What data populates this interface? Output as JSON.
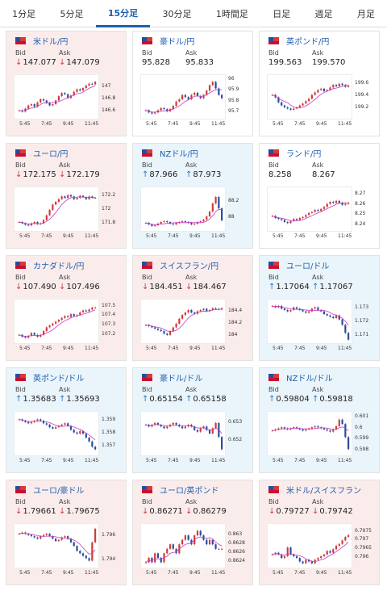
{
  "tabs": [
    {
      "label": "1分足",
      "active": false
    },
    {
      "label": "5分足",
      "active": false
    },
    {
      "label": "15分足",
      "active": true
    },
    {
      "label": "30分足",
      "active": false
    },
    {
      "label": "1時間足",
      "active": false
    },
    {
      "label": "日足",
      "active": false
    },
    {
      "label": "週足",
      "active": false
    },
    {
      "label": "月足",
      "active": false
    }
  ],
  "labels": {
    "bid": "Bid",
    "ask": "Ask"
  },
  "x_ticks": [
    "5:45",
    "7:45",
    "9:45",
    "11:45"
  ],
  "colors": {
    "up_candle": "#d23a3a",
    "down_candle": "#2b4c9a",
    "ma_line": "#c23cc2",
    "link": "#1f5fae"
  },
  "pairs": [
    {
      "name": "米ドル/円",
      "trend": "down",
      "bid": "147.077",
      "ask": "147.079",
      "y_ticks": [
        "147",
        "146.8",
        "146.6"
      ],
      "ylim": [
        146.5,
        147.15
      ],
      "series": [
        146.62,
        146.6,
        146.65,
        146.7,
        146.72,
        146.68,
        146.75,
        146.8,
        146.78,
        146.74,
        146.7,
        146.72,
        146.78,
        146.85,
        146.9,
        146.88,
        146.82,
        146.86,
        146.92,
        146.96,
        146.94,
        146.98,
        147.02,
        147.05,
        147.04,
        147.08
      ]
    },
    {
      "name": "豪ドル/円",
      "trend": "flat",
      "bid": "95.828",
      "ask": "95.833",
      "y_ticks": [
        "96",
        "95.9",
        "95.8",
        "95.7"
      ],
      "ylim": [
        95.65,
        96.02
      ],
      "series": [
        95.72,
        95.7,
        95.69,
        95.7,
        95.72,
        95.74,
        95.73,
        95.71,
        95.73,
        95.76,
        95.8,
        95.82,
        95.86,
        95.84,
        95.82,
        95.86,
        95.88,
        95.85,
        95.83,
        95.86,
        95.9,
        95.95,
        95.98,
        95.92,
        95.86,
        95.83
      ]
    },
    {
      "name": "英ポンド/円",
      "trend": "flat",
      "bid": "199.563",
      "ask": "199.570",
      "y_ticks": [
        "199.6",
        "199.4",
        "199.2"
      ],
      "ylim": [
        199.05,
        199.7
      ],
      "series": [
        199.42,
        199.38,
        199.3,
        199.25,
        199.22,
        199.2,
        199.18,
        199.2,
        199.22,
        199.25,
        199.28,
        199.32,
        199.36,
        199.42,
        199.46,
        199.5,
        199.52,
        199.48,
        199.5,
        199.54,
        199.58,
        199.56,
        199.6,
        199.58,
        199.55,
        199.57
      ]
    },
    {
      "name": "ユーロ/円",
      "trend": "down",
      "bid": "172.175",
      "ask": "172.179",
      "y_ticks": [
        "172.2",
        "172",
        "171.8"
      ],
      "ylim": [
        171.7,
        172.3
      ],
      "series": [
        171.82,
        171.8,
        171.78,
        171.77,
        171.8,
        171.82,
        171.79,
        171.8,
        171.85,
        171.92,
        172.0,
        172.08,
        172.12,
        172.16,
        172.2,
        172.18,
        172.22,
        172.2,
        172.16,
        172.18,
        172.21,
        172.19,
        172.16,
        172.2,
        172.18,
        172.18
      ]
    },
    {
      "name": "NZドル/円",
      "trend": "up",
      "bid": "87.966",
      "ask": "87.973",
      "y_ticks": [
        "88.2",
        "88"
      ],
      "ylim": [
        87.85,
        88.35
      ],
      "series": [
        87.94,
        87.92,
        87.9,
        87.91,
        87.93,
        87.95,
        87.96,
        87.95,
        87.93,
        87.92,
        87.94,
        87.95,
        87.96,
        87.95,
        87.94,
        87.92,
        87.93,
        87.95,
        87.96,
        87.98,
        88.02,
        88.08,
        88.18,
        88.26,
        88.12,
        87.97
      ]
    },
    {
      "name": "ランド/円",
      "trend": "flat",
      "bid": "8.258",
      "ask": "8.267",
      "y_ticks": [
        "8.27",
        "8.26",
        "8.25",
        "8.24"
      ],
      "ylim": [
        8.235,
        8.275
      ],
      "series": [
        8.249,
        8.247,
        8.246,
        8.245,
        8.243,
        8.242,
        8.244,
        8.246,
        8.245,
        8.247,
        8.248,
        8.25,
        8.252,
        8.253,
        8.255,
        8.254,
        8.256,
        8.258,
        8.261,
        8.263,
        8.262,
        8.264,
        8.262,
        8.26,
        8.261,
        8.262
      ]
    },
    {
      "name": "カナダドル/円",
      "trend": "down",
      "bid": "107.490",
      "ask": "107.496",
      "y_ticks": [
        "107.5",
        "107.4",
        "107.3",
        "107.2"
      ],
      "ylim": [
        107.12,
        107.55
      ],
      "series": [
        107.2,
        107.18,
        107.17,
        107.19,
        107.22,
        107.2,
        107.18,
        107.2,
        107.24,
        107.28,
        107.3,
        107.32,
        107.34,
        107.36,
        107.38,
        107.4,
        107.39,
        107.42,
        107.4,
        107.41,
        107.44,
        107.46,
        107.45,
        107.47,
        107.49,
        107.49
      ]
    },
    {
      "name": "スイスフラン/円",
      "trend": "down",
      "bid": "184.451",
      "ask": "184.467",
      "y_ticks": [
        "184.4",
        "184.2",
        "184"
      ],
      "ylim": [
        183.9,
        184.55
      ],
      "series": [
        184.18,
        184.16,
        184.14,
        184.12,
        184.1,
        184.08,
        184.04,
        184.02,
        184.08,
        184.14,
        184.2,
        184.28,
        184.34,
        184.38,
        184.42,
        184.38,
        184.36,
        184.4,
        184.42,
        184.44,
        184.4,
        184.42,
        184.45,
        184.44,
        184.43,
        184.45
      ]
    },
    {
      "name": "ユーロ/ドル",
      "trend": "up",
      "bid": "1.17064",
      "ask": "1.17067",
      "y_ticks": [
        "1.173",
        "1.172",
        "1.171"
      ],
      "ylim": [
        1.1705,
        1.1735
      ],
      "series": [
        1.1732,
        1.1731,
        1.1732,
        1.173,
        1.1729,
        1.1728,
        1.1729,
        1.1731,
        1.173,
        1.1729,
        1.1728,
        1.1727,
        1.1728,
        1.173,
        1.1731,
        1.1729,
        1.1728,
        1.1726,
        1.1725,
        1.1724,
        1.1723,
        1.1725,
        1.1722,
        1.1718,
        1.1712,
        1.1707
      ]
    },
    {
      "name": "英ポンド/ドル",
      "trend": "up",
      "bid": "1.35683",
      "ask": "1.35693",
      "y_ticks": [
        "1.359",
        "1.358",
        "1.357"
      ],
      "ylim": [
        1.3564,
        1.3595
      ],
      "series": [
        1.3591,
        1.359,
        1.3589,
        1.3588,
        1.3589,
        1.359,
        1.3591,
        1.359,
        1.3588,
        1.3587,
        1.3585,
        1.3584,
        1.3585,
        1.3586,
        1.3587,
        1.3588,
        1.3586,
        1.3583,
        1.3581,
        1.358,
        1.3582,
        1.358,
        1.3577,
        1.3574,
        1.357,
        1.3568
      ]
    },
    {
      "name": "豪ドル/ドル",
      "trend": "up",
      "bid": "0.65154",
      "ask": "0.65158",
      "y_ticks": [
        "0.653",
        "0.652"
      ],
      "ylim": [
        0.6512,
        0.6535
      ],
      "series": [
        0.6529,
        0.6528,
        0.6529,
        0.653,
        0.6529,
        0.6528,
        0.6527,
        0.6528,
        0.6529,
        0.653,
        0.6529,
        0.6528,
        0.6527,
        0.6528,
        0.6529,
        0.6528,
        0.6526,
        0.6525,
        0.6527,
        0.6528,
        0.6526,
        0.6524,
        0.6527,
        0.653,
        0.6522,
        0.6515
      ]
    },
    {
      "name": "NZドル/ドル",
      "trend": "up",
      "bid": "0.59804",
      "ask": "0.59818",
      "y_ticks": [
        "0.601",
        "0.6",
        "0.599",
        "0.598"
      ],
      "ylim": [
        0.5976,
        0.6013
      ],
      "series": [
        0.5998,
        0.5999,
        0.6,
        0.6001,
        0.6,
        0.5999,
        0.6,
        0.6001,
        0.6,
        0.5999,
        0.5998,
        0.5999,
        0.6,
        0.6001,
        0.6002,
        0.6001,
        0.6,
        0.5999,
        0.5998,
        0.5997,
        0.5999,
        0.6002,
        0.6008,
        0.6004,
        0.5992,
        0.5981
      ]
    },
    {
      "name": "ユーロ/豪ドル",
      "trend": "down",
      "bid": "1.79661",
      "ask": "1.79675",
      "y_ticks": [
        "1.796",
        "1.794"
      ],
      "ylim": [
        1.7935,
        1.7968
      ],
      "series": [
        1.7962,
        1.7963,
        1.7962,
        1.7961,
        1.796,
        1.7959,
        1.7958,
        1.796,
        1.7961,
        1.7962,
        1.796,
        1.7958,
        1.7956,
        1.7957,
        1.7959,
        1.796,
        1.7958,
        1.7955,
        1.7952,
        1.7948,
        1.7946,
        1.7944,
        1.7942,
        1.794,
        1.7955,
        1.7966
      ]
    },
    {
      "name": "ユーロ/英ポンド",
      "trend": "down",
      "bid": "0.86271",
      "ask": "0.86279",
      "y_ticks": [
        "0.863",
        "0.8628",
        "0.8626",
        "0.8624"
      ],
      "ylim": [
        0.8623,
        0.8632
      ],
      "series": [
        0.8624,
        0.8625,
        0.8624,
        0.8626,
        0.8625,
        0.8624,
        0.8626,
        0.8627,
        0.8628,
        0.8627,
        0.8626,
        0.8628,
        0.8629,
        0.863,
        0.8629,
        0.8628,
        0.863,
        0.8631,
        0.863,
        0.8629,
        0.8628,
        0.8629,
        0.8628,
        0.8627,
        0.8627,
        0.8627
      ]
    },
    {
      "name": "米ドル/スイスフラン",
      "trend": "down",
      "bid": "0.79727",
      "ask": "0.79742",
      "y_ticks": [
        "0.7975",
        "0.797",
        "0.7965",
        "0.796"
      ],
      "ylim": [
        0.7955,
        0.7978
      ],
      "series": [
        0.7962,
        0.7963,
        0.7962,
        0.796,
        0.7961,
        0.7966,
        0.7962,
        0.7961,
        0.796,
        0.7958,
        0.7957,
        0.7959,
        0.7958,
        0.7957,
        0.7959,
        0.796,
        0.7961,
        0.7962,
        0.7964,
        0.7963,
        0.7965,
        0.7967,
        0.7968,
        0.797,
        0.7972,
        0.7973
      ]
    }
  ]
}
